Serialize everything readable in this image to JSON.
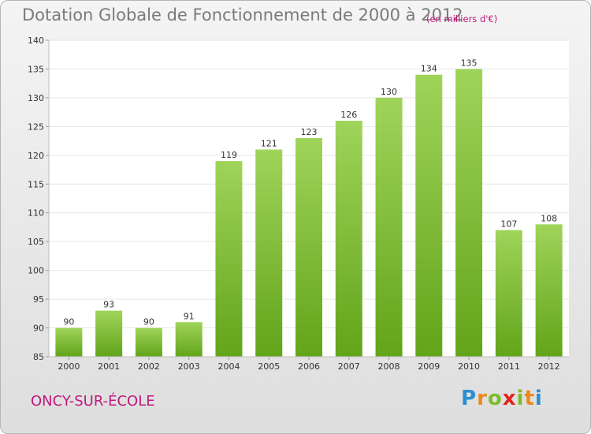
{
  "chart_data": {
    "type": "bar",
    "title": "Dotation Globale de Fonctionnement de 2000 à 2012",
    "subtitle": "(en milliers d'€)",
    "categories": [
      "2000",
      "2001",
      "2002",
      "2003",
      "2004",
      "2005",
      "2006",
      "2007",
      "2008",
      "2009",
      "2010",
      "2011",
      "2012"
    ],
    "values": [
      90,
      93,
      90,
      91,
      119,
      121,
      123,
      126,
      130,
      134,
      135,
      107,
      108
    ],
    "ylim": [
      85,
      140
    ],
    "yticks": [
      85,
      90,
      95,
      100,
      105,
      110,
      115,
      120,
      125,
      130,
      135,
      140
    ],
    "xlabel": "",
    "ylabel": "",
    "grid": true,
    "bar_color": "#7cc02e"
  },
  "footer": {
    "town": "ONCY-SUR-ÉCOLE",
    "logo_letters": [
      {
        "ch": "P",
        "color": "#2a8fd0"
      },
      {
        "ch": "r",
        "color": "#e98a1d"
      },
      {
        "ch": "o",
        "color": "#7cbd2a"
      },
      {
        "ch": "x",
        "color": "#e2261c"
      },
      {
        "ch": "i",
        "color": "#7cbd2a"
      },
      {
        "ch": "t",
        "color": "#e98a1d"
      },
      {
        "ch": "i",
        "color": "#2a8fd0"
      }
    ]
  }
}
